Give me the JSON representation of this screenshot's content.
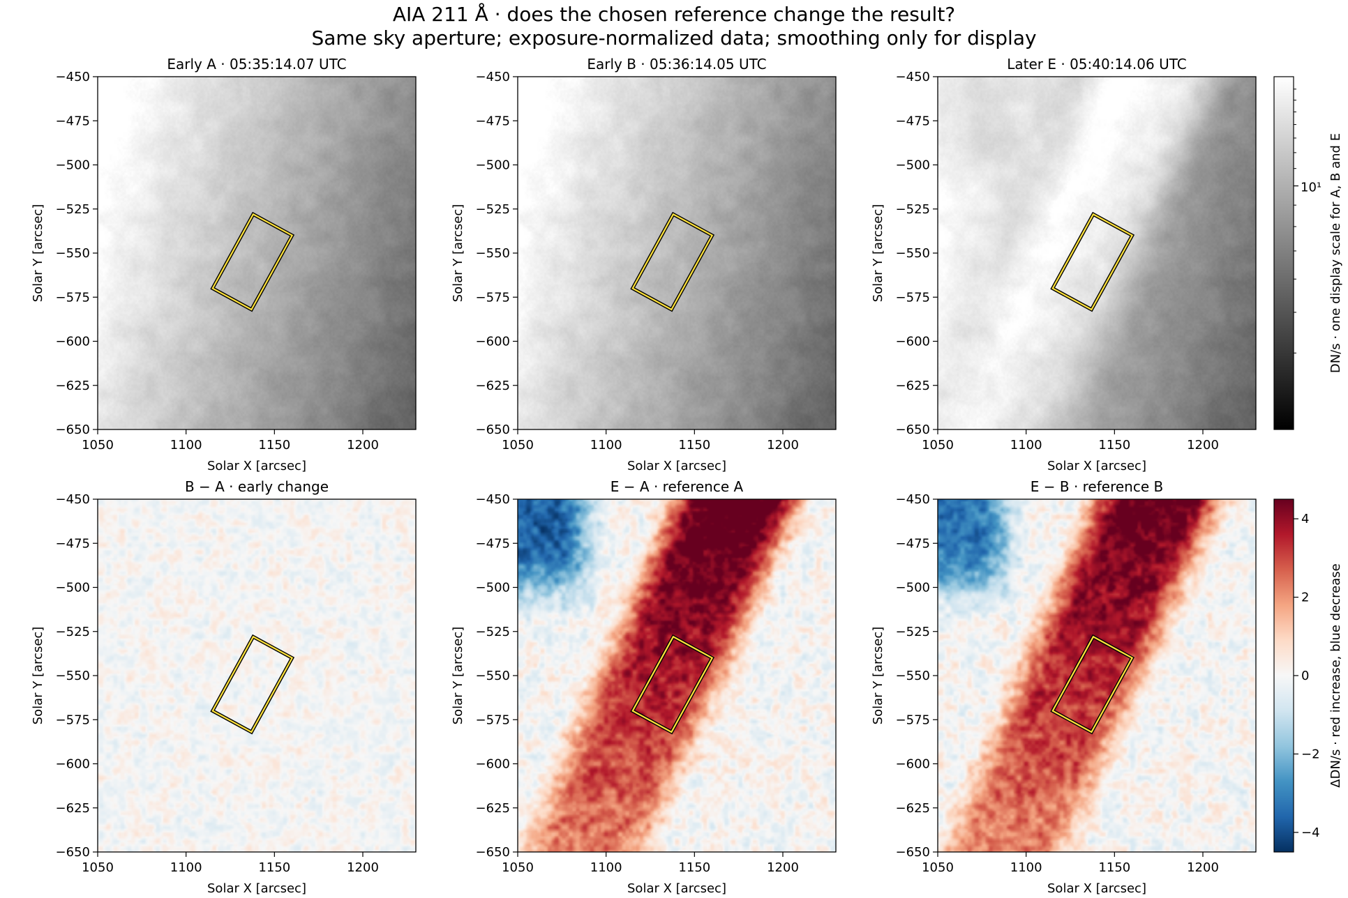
{
  "suptitle_line1": "AIA 211 Å · does the chosen reference change the result?",
  "suptitle_line2": "Same sky aperture; exposure-normalized data; smoothing only for display",
  "chart_data": [
    {
      "type": "heatmap",
      "title": "Early A · 05:35:14.07 UTC",
      "xlabel": "Solar X [arcsec]",
      "ylabel": "Solar Y [arcsec]",
      "xlim": [
        1050,
        1230
      ],
      "ylim": [
        -650,
        -450
      ],
      "xticks": [
        "1050",
        "1100",
        "1150",
        "1200"
      ],
      "yticks": [
        "−450",
        "−475",
        "−500",
        "−525",
        "−550",
        "−575",
        "−600",
        "−625",
        "−650"
      ],
      "colormap": "gray",
      "field": "early_a",
      "aperture_corners": [
        [
          1115,
          -570
        ],
        [
          1138,
          -528
        ],
        [
          1160,
          -540
        ],
        [
          1137,
          -582
        ]
      ]
    },
    {
      "type": "heatmap",
      "title": "Early B · 05:36:14.05 UTC",
      "xlabel": "Solar X [arcsec]",
      "ylabel": "Solar Y [arcsec]",
      "xlim": [
        1050,
        1230
      ],
      "ylim": [
        -650,
        -450
      ],
      "xticks": [
        "1050",
        "1100",
        "1150",
        "1200"
      ],
      "yticks": [
        "−450",
        "−475",
        "−500",
        "−525",
        "−550",
        "−575",
        "−600",
        "−625",
        "−650"
      ],
      "colormap": "gray",
      "field": "early_b",
      "aperture_corners": [
        [
          1115,
          -570
        ],
        [
          1138,
          -528
        ],
        [
          1160,
          -540
        ],
        [
          1137,
          -582
        ]
      ]
    },
    {
      "type": "heatmap",
      "title": "Later E · 05:40:14.06 UTC",
      "xlabel": "Solar X [arcsec]",
      "ylabel": "Solar Y [arcsec]",
      "xlim": [
        1050,
        1230
      ],
      "ylim": [
        -650,
        -450
      ],
      "xticks": [
        "1050",
        "1100",
        "1150",
        "1200"
      ],
      "yticks": [
        "−450",
        "−475",
        "−500",
        "−525",
        "−550",
        "−575",
        "−600",
        "−625",
        "−650"
      ],
      "colormap": "gray",
      "field": "later_e",
      "aperture_corners": [
        [
          1115,
          -570
        ],
        [
          1138,
          -528
        ],
        [
          1160,
          -540
        ],
        [
          1137,
          -582
        ]
      ]
    },
    {
      "type": "heatmap",
      "title": "B − A · early change",
      "xlabel": "Solar X [arcsec]",
      "ylabel": "Solar Y [arcsec]",
      "xlim": [
        1050,
        1230
      ],
      "ylim": [
        -650,
        -450
      ],
      "xticks": [
        "1050",
        "1100",
        "1150",
        "1200"
      ],
      "yticks": [
        "−450",
        "−475",
        "−500",
        "−525",
        "−550",
        "−575",
        "−600",
        "−625",
        "−650"
      ],
      "colormap": "RdBu_r",
      "field": "diff_ba",
      "aperture_corners": [
        [
          1115,
          -570
        ],
        [
          1138,
          -528
        ],
        [
          1160,
          -540
        ],
        [
          1137,
          -582
        ]
      ]
    },
    {
      "type": "heatmap",
      "title": "E − A · reference A",
      "xlabel": "Solar X [arcsec]",
      "ylabel": "Solar Y [arcsec]",
      "xlim": [
        1050,
        1230
      ],
      "ylim": [
        -650,
        -450
      ],
      "xticks": [
        "1050",
        "1100",
        "1150",
        "1200"
      ],
      "yticks": [
        "−450",
        "−475",
        "−500",
        "−525",
        "−550",
        "−575",
        "−600",
        "−625",
        "−650"
      ],
      "colormap": "RdBu_r",
      "field": "diff_ea",
      "aperture_corners": [
        [
          1115,
          -570
        ],
        [
          1138,
          -528
        ],
        [
          1160,
          -540
        ],
        [
          1137,
          -582
        ]
      ]
    },
    {
      "type": "heatmap",
      "title": "E − B · reference B",
      "xlabel": "Solar X [arcsec]",
      "ylabel": "Solar Y [arcsec]",
      "xlim": [
        1050,
        1230
      ],
      "ylim": [
        -650,
        -450
      ],
      "xticks": [
        "1050",
        "1100",
        "1150",
        "1200"
      ],
      "yticks": [
        "−450",
        "−475",
        "−500",
        "−525",
        "−550",
        "−575",
        "−600",
        "−625",
        "−650"
      ],
      "colormap": "RdBu_r",
      "field": "diff_eb",
      "aperture_corners": [
        [
          1115,
          -570
        ],
        [
          1138,
          -528
        ],
        [
          1160,
          -540
        ],
        [
          1137,
          -582
        ]
      ]
    }
  ],
  "colorbar_intensity": {
    "label": "DN/s · one display scale for A, B and E",
    "scale": "log",
    "tick_label": "10¹",
    "tick_value": 10
  },
  "colorbar_difference": {
    "label": "ΔDN/s · red increase, blue decrease",
    "range": [
      -4.5,
      4.5
    ],
    "ticks": [
      "4",
      "2",
      "0",
      "−2",
      "−4"
    ],
    "tick_values": [
      4,
      2,
      0,
      -2,
      -4
    ]
  },
  "colors": {
    "aperture": "#ffe23b",
    "aperture_outline": "#000000",
    "gray_low": "#000000",
    "gray_high": "#ffffff"
  }
}
